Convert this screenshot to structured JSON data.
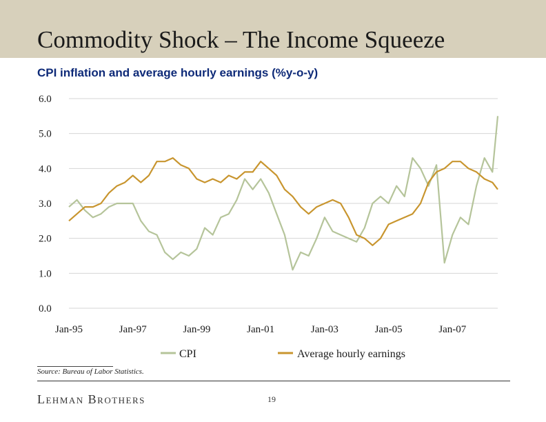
{
  "slide": {
    "title": "Commodity Shock – The Income Squeeze",
    "subtitle": "CPI inflation and average hourly earnings (%y-o-y)",
    "source": "Source: Bureau of Labor Statistics.",
    "brand": "Lehman Brothers",
    "page_number": "19"
  },
  "colors": {
    "title_bar": "#d7d0bb",
    "subtitle": "#0e2a78",
    "cpi": "#b5c49a",
    "earnings": "#c8952e",
    "grid": "#d4d4d4"
  },
  "chart_data": {
    "type": "line",
    "title": "CPI inflation and average hourly earnings (%y-o-y)",
    "xlabel": "",
    "ylabel": "",
    "x_range": [
      "Jan-95",
      "Jun-08"
    ],
    "ylim": [
      0,
      6
    ],
    "y_ticks": [
      0,
      1,
      2,
      3,
      4,
      5,
      6
    ],
    "y_tick_labels": [
      "0.0",
      "1.0",
      "2.0",
      "3.0",
      "4.0",
      "5.0",
      "6.0"
    ],
    "x_tick_labels": [
      "Jan-95",
      "Jan-97",
      "Jan-99",
      "Jan-01",
      "Jan-03",
      "Jan-05",
      "Jan-07"
    ],
    "grid": true,
    "legend_position": "bottom",
    "series": [
      {
        "name": "CPI",
        "color": "#b5c49a",
        "x": [
          "1995-01",
          "1995-04",
          "1995-07",
          "1995-10",
          "1996-01",
          "1996-04",
          "1996-07",
          "1996-10",
          "1997-01",
          "1997-04",
          "1997-07",
          "1997-10",
          "1998-01",
          "1998-04",
          "1998-07",
          "1998-10",
          "1999-01",
          "1999-04",
          "1999-07",
          "1999-10",
          "2000-01",
          "2000-04",
          "2000-07",
          "2000-10",
          "2001-01",
          "2001-04",
          "2001-07",
          "2001-10",
          "2002-01",
          "2002-04",
          "2002-07",
          "2002-10",
          "2003-01",
          "2003-04",
          "2003-07",
          "2003-10",
          "2004-01",
          "2004-04",
          "2004-07",
          "2004-10",
          "2005-01",
          "2005-04",
          "2005-07",
          "2005-10",
          "2006-01",
          "2006-04",
          "2006-07",
          "2006-10",
          "2007-01",
          "2007-04",
          "2007-07",
          "2007-10",
          "2008-01",
          "2008-04",
          "2008-06"
        ],
        "values": [
          2.9,
          3.1,
          2.8,
          2.6,
          2.7,
          2.9,
          3.0,
          3.0,
          3.0,
          2.5,
          2.2,
          2.1,
          1.6,
          1.4,
          1.6,
          1.5,
          1.7,
          2.3,
          2.1,
          2.6,
          2.7,
          3.1,
          3.7,
          3.4,
          3.7,
          3.3,
          2.7,
          2.1,
          1.1,
          1.6,
          1.5,
          2.0,
          2.6,
          2.2,
          2.1,
          2.0,
          1.9,
          2.3,
          3.0,
          3.2,
          3.0,
          3.5,
          3.2,
          4.3,
          4.0,
          3.5,
          4.1,
          1.3,
          2.1,
          2.6,
          2.4,
          3.5,
          4.3,
          3.9,
          5.5
        ]
      },
      {
        "name": "Average hourly earnings",
        "color": "#c8952e",
        "x": [
          "1995-01",
          "1995-04",
          "1995-07",
          "1995-10",
          "1996-01",
          "1996-04",
          "1996-07",
          "1996-10",
          "1997-01",
          "1997-04",
          "1997-07",
          "1997-10",
          "1998-01",
          "1998-04",
          "1998-07",
          "1998-10",
          "1999-01",
          "1999-04",
          "1999-07",
          "1999-10",
          "2000-01",
          "2000-04",
          "2000-07",
          "2000-10",
          "2001-01",
          "2001-04",
          "2001-07",
          "2001-10",
          "2002-01",
          "2002-04",
          "2002-07",
          "2002-10",
          "2003-01",
          "2003-04",
          "2003-07",
          "2003-10",
          "2004-01",
          "2004-04",
          "2004-07",
          "2004-10",
          "2005-01",
          "2005-04",
          "2005-07",
          "2005-10",
          "2006-01",
          "2006-04",
          "2006-07",
          "2006-10",
          "2007-01",
          "2007-04",
          "2007-07",
          "2007-10",
          "2008-01",
          "2008-04",
          "2008-06"
        ],
        "values": [
          2.5,
          2.7,
          2.9,
          2.9,
          3.0,
          3.3,
          3.5,
          3.6,
          3.8,
          3.6,
          3.8,
          4.2,
          4.2,
          4.3,
          4.1,
          4.0,
          3.7,
          3.6,
          3.7,
          3.6,
          3.8,
          3.7,
          3.9,
          3.9,
          4.2,
          4.0,
          3.8,
          3.4,
          3.2,
          2.9,
          2.7,
          2.9,
          3.0,
          3.1,
          3.0,
          2.6,
          2.1,
          2.0,
          1.8,
          2.0,
          2.4,
          2.5,
          2.6,
          2.7,
          3.0,
          3.6,
          3.9,
          4.0,
          4.2,
          4.2,
          4.0,
          3.9,
          3.7,
          3.6,
          3.4
        ]
      }
    ]
  }
}
